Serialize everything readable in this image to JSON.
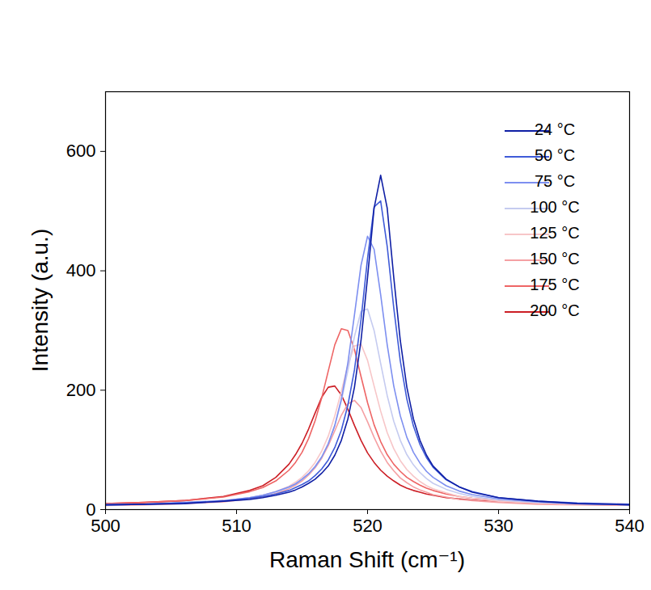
{
  "chart_data": {
    "type": "line",
    "x_label": "Raman Shift (cm⁻¹)",
    "y_label": "Intensity (a.u.)",
    "xlim": [
      500,
      540
    ],
    "xticks": [
      500,
      510,
      520,
      530,
      540
    ],
    "ylim": [
      0,
      700
    ],
    "yticks": [
      0,
      200,
      400,
      600
    ],
    "grid": false,
    "legend": "upper right",
    "x": [
      500,
      503,
      506,
      509,
      511,
      512,
      513,
      514,
      514.5,
      515,
      515.5,
      516,
      516.5,
      517,
      517.5,
      518,
      518.5,
      519,
      519.5,
      520,
      520.5,
      521,
      521.5,
      522,
      522.5,
      523,
      523.5,
      524,
      524.5,
      525,
      526,
      527,
      528,
      530,
      533,
      536,
      540
    ],
    "series": [
      {
        "name": "24 °C",
        "color": "#0f1fa5",
        "values": [
          8,
          9,
          10,
          14,
          17,
          20,
          24,
          29,
          33,
          38,
          44,
          51,
          61,
          73,
          91,
          116,
          152,
          205,
          283,
          389,
          505,
          560,
          505,
          389,
          283,
          205,
          152,
          116,
          91,
          73,
          51,
          38,
          29,
          20,
          14,
          10,
          8
        ]
      },
      {
        "name": "50 °C",
        "color": "#3f5bd8",
        "values": [
          8,
          9,
          11,
          14,
          19,
          22,
          26,
          32,
          37,
          42,
          48,
          57,
          68,
          83,
          104,
          133,
          175,
          234,
          318,
          421,
          507,
          517,
          441,
          338,
          249,
          185,
          140,
          109,
          87,
          71,
          50,
          38,
          30,
          20,
          14,
          11,
          9
        ]
      },
      {
        "name": "75 °C",
        "color": "#7d8ff0",
        "values": [
          8,
          9,
          12,
          15,
          20,
          24,
          30,
          38,
          43,
          51,
          60,
          72,
          88,
          110,
          141,
          185,
          246,
          326,
          409,
          458,
          436,
          360,
          276,
          207,
          157,
          121,
          96,
          78,
          64,
          54,
          40,
          31,
          25,
          18,
          13,
          10,
          8
        ]
      },
      {
        "name": "100 °C",
        "color": "#c5cbf0",
        "values": [
          8,
          9,
          11,
          15,
          20,
          24,
          29,
          37,
          43,
          50,
          60,
          72,
          88,
          111,
          141,
          182,
          233,
          290,
          332,
          336,
          300,
          245,
          191,
          148,
          116,
          92,
          75,
          62,
          52,
          44,
          34,
          27,
          22,
          16,
          12,
          10,
          8
        ]
      },
      {
        "name": "125 °C",
        "color": "#f7c6c8",
        "values": [
          8,
          9,
          11,
          15,
          20,
          24,
          30,
          39,
          46,
          54,
          65,
          79,
          98,
          123,
          157,
          198,
          242,
          274,
          277,
          250,
          207,
          165,
          129,
          102,
          82,
          67,
          56,
          47,
          40,
          35,
          28,
          22,
          19,
          14,
          11,
          9,
          8
        ]
      },
      {
        "name": "150 °C",
        "color": "#f5a0a3",
        "values": [
          7,
          8,
          10,
          13,
          18,
          21,
          27,
          35,
          41,
          48,
          58,
          70,
          86,
          107,
          132,
          158,
          177,
          183,
          171,
          147,
          121,
          98,
          79,
          65,
          53,
          45,
          38,
          33,
          29,
          25,
          21,
          17,
          15,
          12,
          9,
          8,
          7
        ]
      },
      {
        "name": "175 °C",
        "color": "#ee6565",
        "values": [
          10,
          12,
          15,
          21,
          30,
          37,
          48,
          66,
          79,
          96,
          119,
          149,
          187,
          232,
          276,
          303,
          300,
          268,
          223,
          179,
          142,
          114,
          92,
          76,
          64,
          54,
          47,
          41,
          36,
          32,
          26,
          22,
          19,
          15,
          12,
          10,
          9
        ]
      },
      {
        "name": "200 °C",
        "color": "#cc1e25",
        "values": [
          10,
          12,
          15,
          22,
          32,
          40,
          54,
          76,
          92,
          111,
          135,
          162,
          188,
          205,
          207,
          192,
          168,
          141,
          116,
          95,
          79,
          66,
          56,
          48,
          41,
          36,
          32,
          29,
          26,
          24,
          20,
          18,
          16,
          13,
          11,
          9,
          8
        ]
      }
    ]
  }
}
